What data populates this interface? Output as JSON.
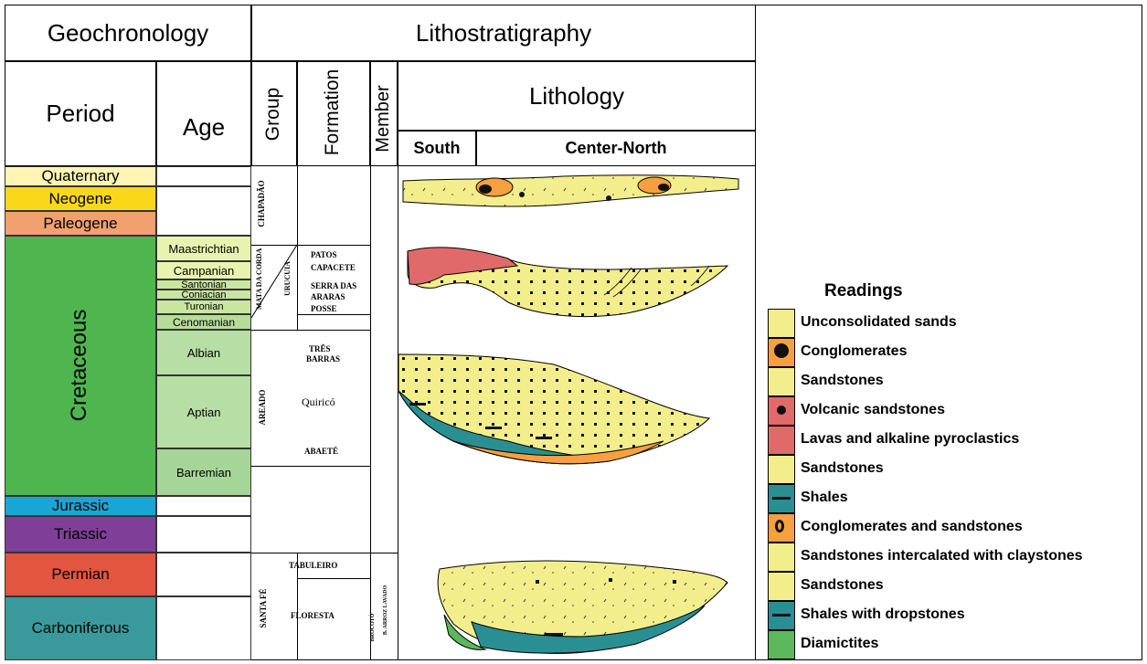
{
  "headers": {
    "geochronology": "Geochronology",
    "lithostratigraphy": "Lithostratigraphy",
    "period": "Period",
    "age": "Age",
    "group": "Group",
    "formation": "Formation",
    "member": "Member",
    "lithology": "Lithology",
    "south": "South",
    "center_north": "Center-North"
  },
  "periods": [
    {
      "name": "Quaternary",
      "color": "#fdf5b3"
    },
    {
      "name": "Neogene",
      "color": "#f8d818"
    },
    {
      "name": "Paleogene",
      "color": "#f1a070"
    },
    {
      "name": "Cretaceous",
      "color": "#4fb54f"
    },
    {
      "name": "Jurassic",
      "color": "#1aa6d4"
    },
    {
      "name": "Triassic",
      "color": "#7f3f98"
    },
    {
      "name": "Permian",
      "color": "#e2553f"
    },
    {
      "name": "Carboniferous",
      "color": "#3a9a9b"
    }
  ],
  "ages": [
    {
      "name": "Maastrichtian",
      "color": "#e8f3b0"
    },
    {
      "name": "Campanian",
      "color": "#e8f3b0"
    },
    {
      "name": "Santonian",
      "color": "#c8e6a0"
    },
    {
      "name": "Coniacian",
      "color": "#c8e6a0"
    },
    {
      "name": "Turonian",
      "color": "#c8e6a0"
    },
    {
      "name": "Cenomanian",
      "color": "#b6dd98"
    },
    {
      "name": "Albian",
      "color": "#b7dea4"
    },
    {
      "name": "Aptian",
      "color": "#b7dea4"
    },
    {
      "name": "Barremian",
      "color": "#a5d697"
    }
  ],
  "groups": {
    "chapadao": "CHAPADÃO",
    "mata_da_corda": "MATA DA CORDA",
    "urucuia": "URUCUIA",
    "areado": "AREADO",
    "santa_fe": "SANTA FÉ"
  },
  "formations": {
    "patos": "PATOS",
    "capacete": "CAPACETE",
    "serra_das": "SERRA DAS",
    "araras": "ARARAS",
    "posse": "POSSE",
    "tres": "TRÊS",
    "barras": "BARRAS",
    "quirico": "Quiricó",
    "abaete": "ABAETÉ",
    "tabuleiro": "TABULEIRO",
    "floresta": "FLORESTA"
  },
  "members": {
    "brocoto": "BROCOTÓ",
    "b_arroz_lavado": "B. ARROZ LAVADO"
  },
  "legend": {
    "title": "Readings",
    "items": [
      {
        "label": "Unconsolidated sands",
        "color": "#f3ee8c"
      },
      {
        "label": "Conglomerates",
        "color": "#f6a040"
      },
      {
        "label": "Sandstones",
        "color": "#f3ee8c"
      },
      {
        "label": "Volcanic sandstones",
        "color": "#e06a6a"
      },
      {
        "label": "Lavas and alkaline pyroclastics",
        "color": "#e06a6a"
      },
      {
        "label": "Sandstones",
        "color": "#f3ee8c"
      },
      {
        "label": "Shales",
        "color": "#2a8f93"
      },
      {
        "label": "Conglomerates and sandstones",
        "color": "#f6a040"
      },
      {
        "label": "Sandstones intercalated with claystones",
        "color": "#f3ee8c"
      },
      {
        "label": "Sandstones",
        "color": "#f3ee8c"
      },
      {
        "label": "Shales with dropstones",
        "color": "#2a8f93"
      },
      {
        "label": "Diamictites",
        "color": "#5cb85c"
      }
    ]
  }
}
